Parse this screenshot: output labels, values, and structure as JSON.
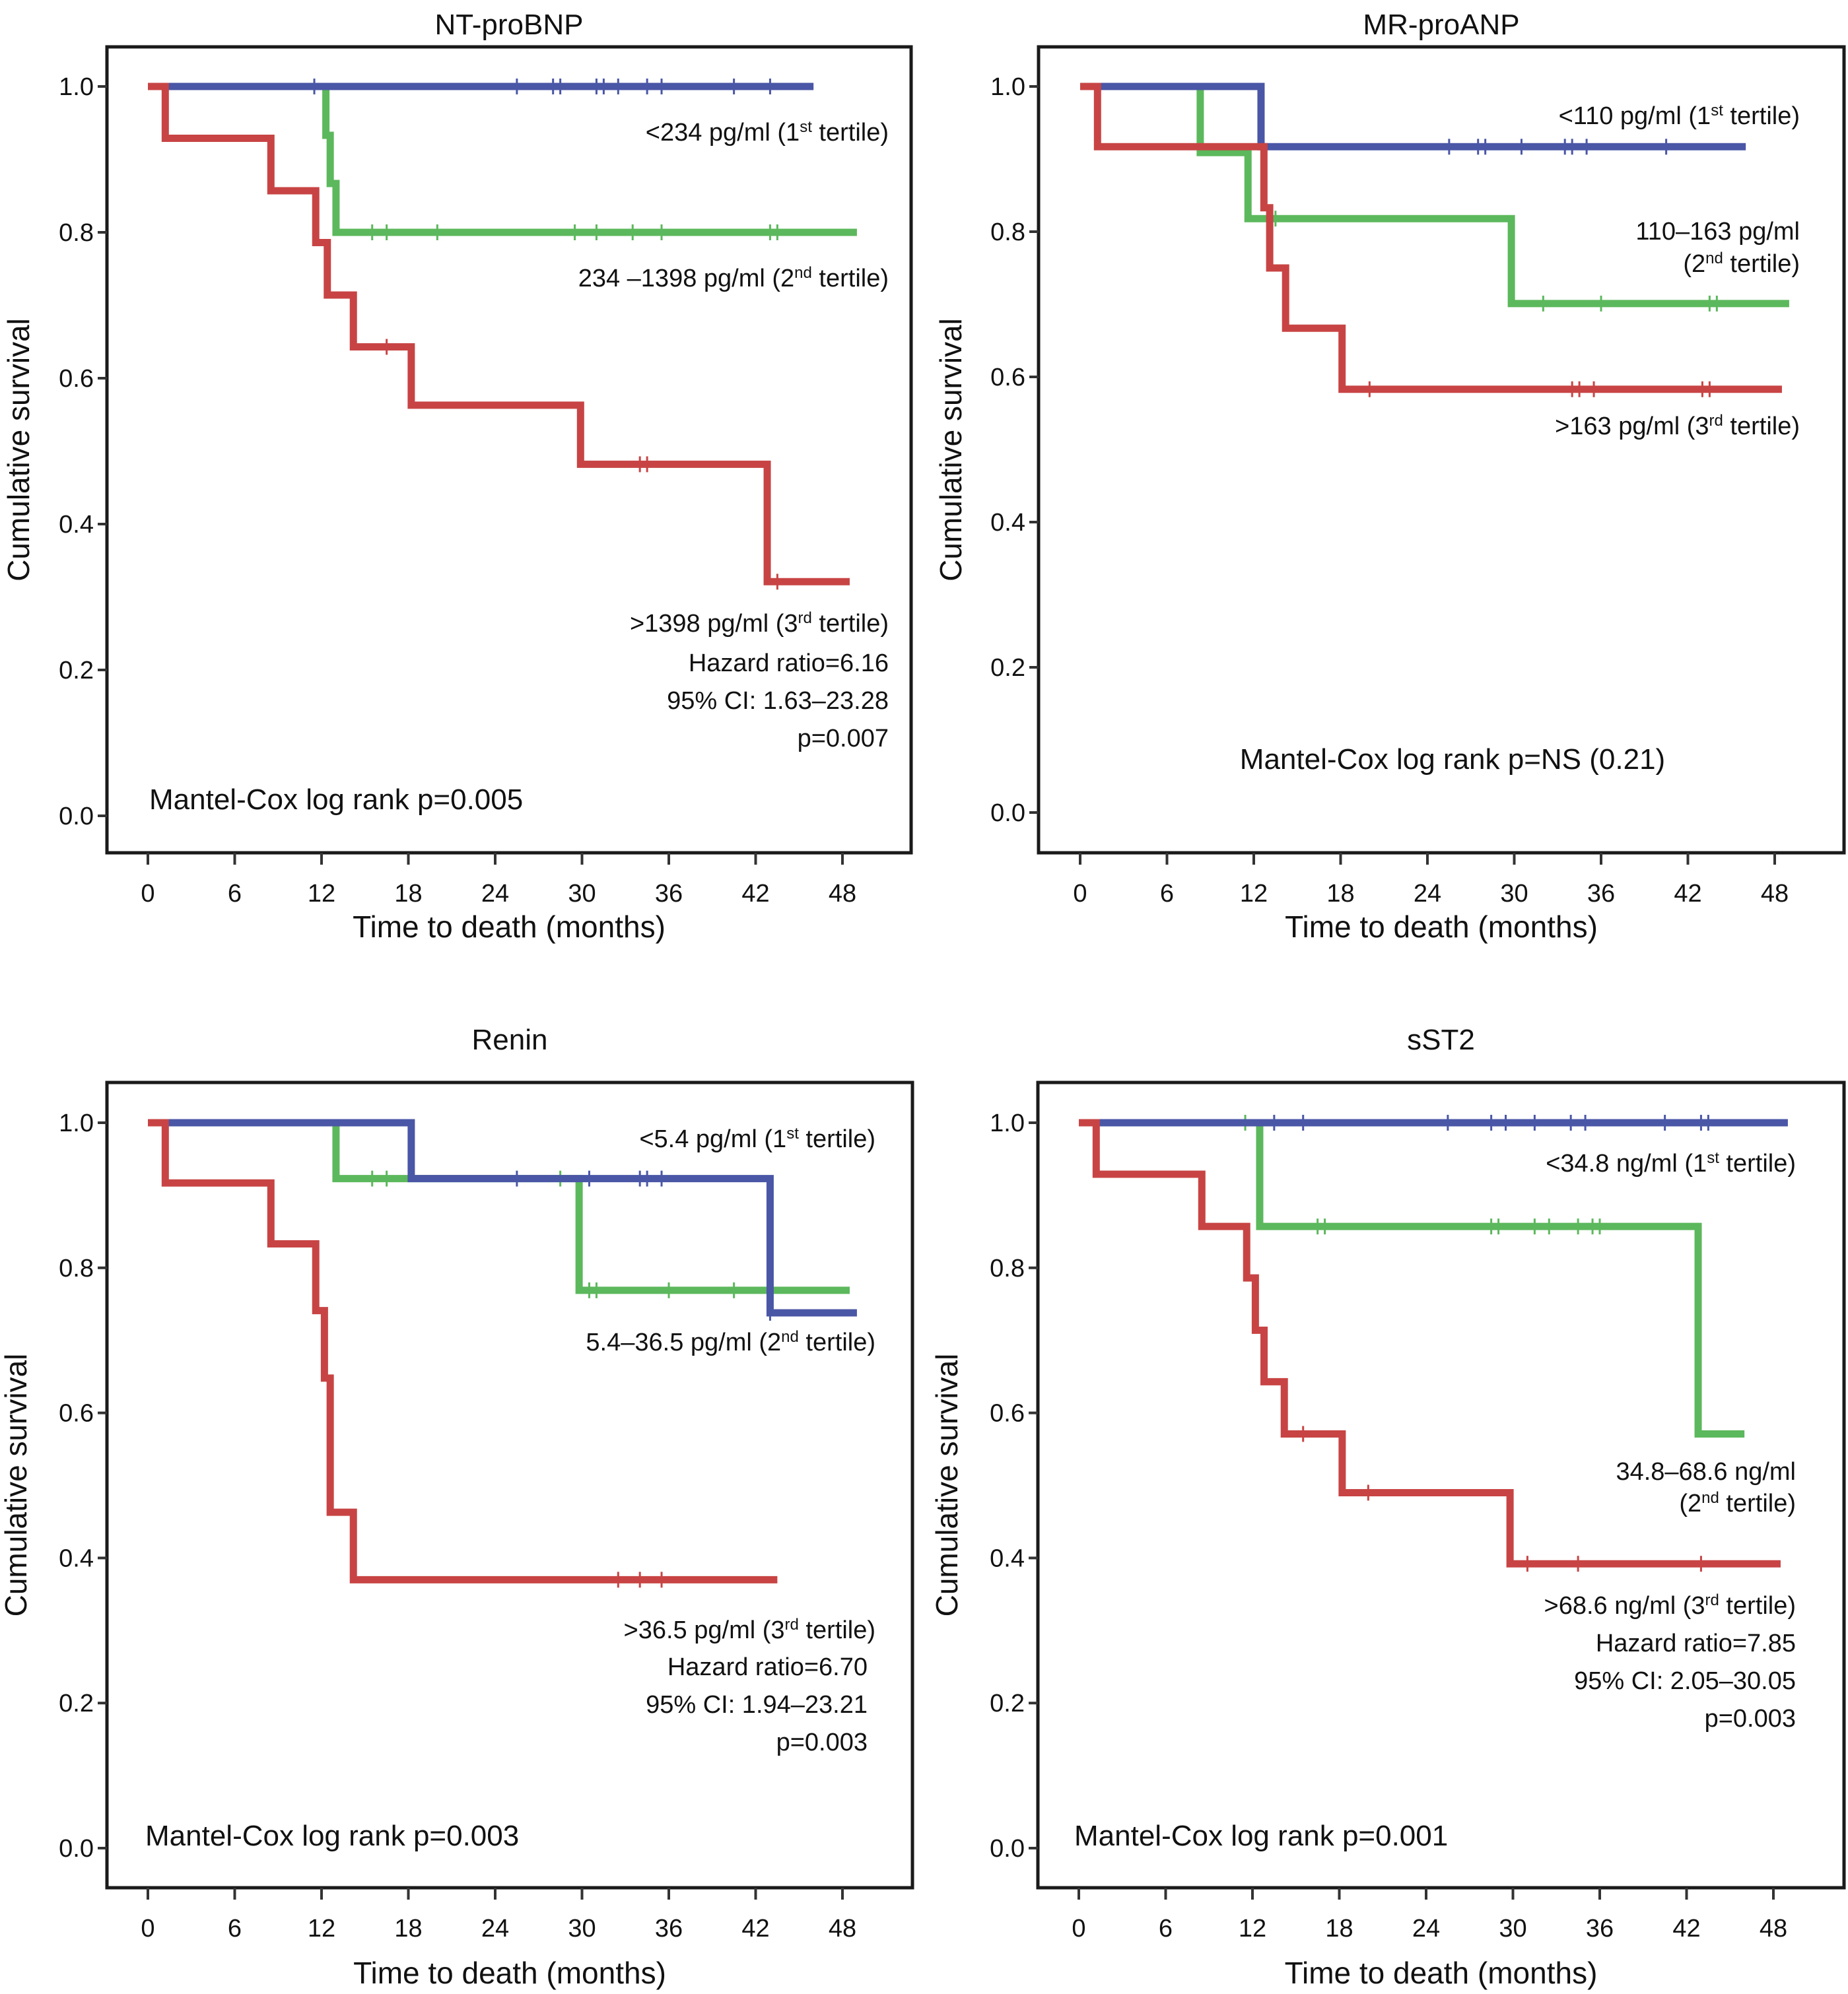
{
  "chart_data": [
    {
      "type": "line",
      "subtype": "kaplan-meier",
      "title": "NT-proBNP",
      "xlabel": "Time to death (months)",
      "ylabel": "Cumulative survival",
      "xlim": [
        0,
        48
      ],
      "ylim": [
        0,
        1.0
      ],
      "xticks": [
        "0",
        "6",
        "12",
        "18",
        "24",
        "30",
        "36",
        "42",
        "48"
      ],
      "yticks": [
        "0.0",
        "0.2",
        "0.4",
        "0.6",
        "0.8",
        "1.0"
      ],
      "grid": false,
      "series": [
        {
          "name": "<234 pg/ml (1st tertile)",
          "label_main": "<234 pg/ml (1",
          "label_sup": "st",
          "label_tail": " tertile)",
          "color": "#4a56a6",
          "steps": [
            [
              0,
              1.0
            ],
            [
              46,
              1.0
            ]
          ],
          "censored": [
            11.5,
            25.5,
            28,
            28.5,
            31,
            31.5,
            32.5,
            34.5,
            35.5,
            40.5,
            43
          ],
          "end": 46
        },
        {
          "name": "234 –1398 pg/ml (2nd tertile)",
          "label_main": "234 –1398 pg/ml (2",
          "label_sup": "nd",
          "label_tail": " tertile)",
          "color": "#5cb85c",
          "steps": [
            [
              0,
              1.0
            ],
            [
              12.3,
              0.933
            ],
            [
              12.6,
              0.867
            ],
            [
              13,
              0.8
            ],
            [
              49,
              0.8
            ]
          ],
          "censored": [
            15.5,
            16.5,
            20,
            29.5,
            31,
            33.5,
            35.5,
            43,
            43.5
          ],
          "end": 49
        },
        {
          "name": ">1398 pg/ml (3rd tertile)",
          "label_main": ">1398 pg/ml (3",
          "label_sup": "rd",
          "label_tail": " tertile)",
          "color": "#c84444",
          "steps": [
            [
              0,
              1.0
            ],
            [
              1.2,
              0.929
            ],
            [
              8.5,
              0.857
            ],
            [
              11.6,
              0.786
            ],
            [
              12.4,
              0.714
            ],
            [
              14.2,
              0.643
            ],
            [
              18.2,
              0.563
            ],
            [
              29.9,
              0.482
            ],
            [
              42.8,
              0.321
            ],
            [
              48.5,
              0.321
            ]
          ],
          "censored": [
            16.5,
            34,
            34.5,
            43.5
          ],
          "end": 48.5
        }
      ],
      "annotations": {
        "stats": [
          "Hazard ratio=6.16",
          "95% CI: 1.63–23.28",
          "p=0.007"
        ],
        "logrank": "Mantel-Cox log rank p=0.005"
      }
    },
    {
      "type": "line",
      "subtype": "kaplan-meier",
      "title": "MR-proANP",
      "xlabel": "Time to death (months)",
      "ylabel": "Cumulative survival",
      "xlim": [
        0,
        48
      ],
      "ylim": [
        0,
        1.0
      ],
      "xticks": [
        "0",
        "6",
        "12",
        "18",
        "24",
        "30",
        "36",
        "42",
        "48"
      ],
      "yticks": [
        "0.0",
        "0.2",
        "0.4",
        "0.6",
        "0.8",
        "1.0"
      ],
      "grid": false,
      "series": [
        {
          "name": "<110 pg/ml (1st tertile)",
          "label_main": "<110 pg/ml (1",
          "label_sup": "st",
          "label_tail": " tertile)",
          "color": "#4a56a6",
          "steps": [
            [
              0,
              1.0
            ],
            [
              12.5,
              0.917
            ],
            [
              46,
              0.917
            ]
          ],
          "censored": [
            25.5,
            27.5,
            28,
            30.5,
            33.5,
            34,
            35,
            40.5
          ],
          "end": 46
        },
        {
          "name": "110–163 pg/ml (2nd tertile)",
          "label_main": "110–163 pg/ml",
          "label_line2_main": "(2",
          "label_sup": "nd",
          "label_tail": " tertile)",
          "color": "#5cb85c",
          "steps": [
            [
              0,
              1.0
            ],
            [
              8.3,
              0.909
            ],
            [
              11.6,
              0.818
            ],
            [
              29.8,
              0.701
            ],
            [
              49,
              0.701
            ]
          ],
          "censored": [
            13.5,
            32,
            36,
            43.5,
            44
          ],
          "end": 49
        },
        {
          "name": ">163 pg/ml (3rd tertile)",
          "label_main": ">163 pg/ml (3",
          "label_sup": "rd",
          "label_tail": " tertile)",
          "color": "#c84444",
          "steps": [
            [
              0,
              1.0
            ],
            [
              1.2,
              0.917
            ],
            [
              12.7,
              0.833
            ],
            [
              13.1,
              0.75
            ],
            [
              14.2,
              0.667
            ],
            [
              18.1,
              0.583
            ],
            [
              48.5,
              0.583
            ]
          ],
          "censored": [
            20,
            34,
            34.5,
            35.5,
            43,
            43.5
          ],
          "end": 48.5
        }
      ],
      "annotations": {
        "stats": [],
        "logrank": "Mantel-Cox log rank p=NS (0.21)"
      }
    },
    {
      "type": "line",
      "subtype": "kaplan-meier",
      "title": "Renin",
      "xlabel": "Time to death (months)",
      "ylabel": "Cumulative survival",
      "xlim": [
        0,
        48
      ],
      "ylim": [
        0,
        1.0
      ],
      "xticks": [
        "0",
        "6",
        "12",
        "18",
        "24",
        "30",
        "36",
        "42",
        "48"
      ],
      "yticks": [
        "0.0",
        "0.2",
        "0.4",
        "0.6",
        "0.8",
        "1.0"
      ],
      "grid": false,
      "series": [
        {
          "name": "<5.4 pg/ml (1st tertile)",
          "label_main": "<5.4 pg/ml (1",
          "label_sup": "st",
          "label_tail": " tertile)",
          "color": "#4a56a6",
          "steps": [
            [
              0,
              1.0
            ],
            [
              18.2,
              0.923
            ],
            [
              43,
              0.738
            ],
            [
              49,
              0.738
            ]
          ],
          "censored": [
            25.5,
            30.5,
            34,
            34.5,
            35.5,
            43
          ],
          "end": 49
        },
        {
          "name": "5.4–36.5 pg/ml (2nd tertile)",
          "label_main": "5.4–36.5 pg/ml (2",
          "label_sup": "nd",
          "label_tail": " tertile)",
          "color": "#5cb85c",
          "steps": [
            [
              0,
              1.0
            ],
            [
              13,
              0.923
            ],
            [
              29.8,
              0.769
            ],
            [
              48.5,
              0.769
            ]
          ],
          "censored": [
            15.5,
            16.5,
            28.5,
            30.5,
            31,
            36,
            40.5
          ],
          "end": 48.5
        },
        {
          "name": ">36.5 pg/ml (3rd tertile)",
          "label_main": ">36.5 pg/ml (3",
          "label_sup": "rd",
          "label_tail": " tertile)",
          "color": "#c84444",
          "steps": [
            [
              0,
              1.0
            ],
            [
              1.2,
              0.917
            ],
            [
              8.5,
              0.833
            ],
            [
              11.6,
              0.741
            ],
            [
              12.2,
              0.648
            ],
            [
              12.6,
              0.463
            ],
            [
              14.2,
              0.37
            ],
            [
              43.5,
              0.37
            ]
          ],
          "censored": [
            32.5,
            34,
            35.5
          ],
          "end": 43.5
        }
      ],
      "annotations": {
        "stats": [
          "Hazard ratio=6.70",
          "95% CI: 1.94–23.21",
          "p=0.003"
        ],
        "logrank": "Mantel-Cox log rank p=0.003"
      }
    },
    {
      "type": "line",
      "subtype": "kaplan-meier",
      "title": "sST2",
      "xlabel": "Time to death (months)",
      "ylabel": "Cumulative survival",
      "xlim": [
        0,
        48
      ],
      "ylim": [
        0,
        1.0
      ],
      "xticks": [
        "0",
        "6",
        "12",
        "18",
        "24",
        "30",
        "36",
        "42",
        "48"
      ],
      "yticks": [
        "0.0",
        "0.2",
        "0.4",
        "0.6",
        "0.8",
        "1.0"
      ],
      "grid": false,
      "series": [
        {
          "name": "<34.8 ng/ml (1st tertile)",
          "label_main": "<34.8 ng/ml (1",
          "label_sup": "st",
          "label_tail": " tertile)",
          "color": "#4a56a6",
          "steps": [
            [
              0,
              1.0
            ],
            [
              49,
              1.0
            ]
          ],
          "censored": [
            13.5,
            15.5,
            25.5,
            28.5,
            29.5,
            31.5,
            34,
            35,
            40.5,
            43,
            43.5
          ],
          "end": 49
        },
        {
          "name": "34.8–68.6 ng/ml (2nd tertile)",
          "label_main": "34.8–68.6 ng/ml",
          "label_line2_main": "(2",
          "label_sup": "nd",
          "label_tail": " tertile)",
          "color": "#5cb85c",
          "steps": [
            [
              0,
              1.0
            ],
            [
              12.5,
              0.857
            ],
            [
              42.8,
              0.571
            ],
            [
              46,
              0.571
            ]
          ],
          "censored": [
            11.5,
            16.5,
            17,
            28.5,
            29,
            31.5,
            32.5,
            34.5,
            35.5,
            36
          ],
          "end": 46
        },
        {
          "name": ">68.6 ng/ml (3rd tertile)",
          "label_main": ">68.6 ng/ml (3",
          "label_sup": "rd",
          "label_tail": " tertile)",
          "color": "#c84444",
          "steps": [
            [
              0,
              1.0
            ],
            [
              1.2,
              0.929
            ],
            [
              8.5,
              0.857
            ],
            [
              11.6,
              0.786
            ],
            [
              12.2,
              0.714
            ],
            [
              12.8,
              0.643
            ],
            [
              14.2,
              0.571
            ],
            [
              18.2,
              0.49
            ],
            [
              29.8,
              0.392
            ],
            [
              48.5,
              0.392
            ]
          ],
          "censored": [
            15.5,
            20,
            31,
            34.5,
            43
          ],
          "end": 48.5
        }
      ],
      "annotations": {
        "stats": [
          "Hazard ratio=7.85",
          "95% CI: 2.05–30.05",
          "p=0.003"
        ],
        "logrank": "Mantel-Cox log rank p=0.001"
      }
    }
  ]
}
